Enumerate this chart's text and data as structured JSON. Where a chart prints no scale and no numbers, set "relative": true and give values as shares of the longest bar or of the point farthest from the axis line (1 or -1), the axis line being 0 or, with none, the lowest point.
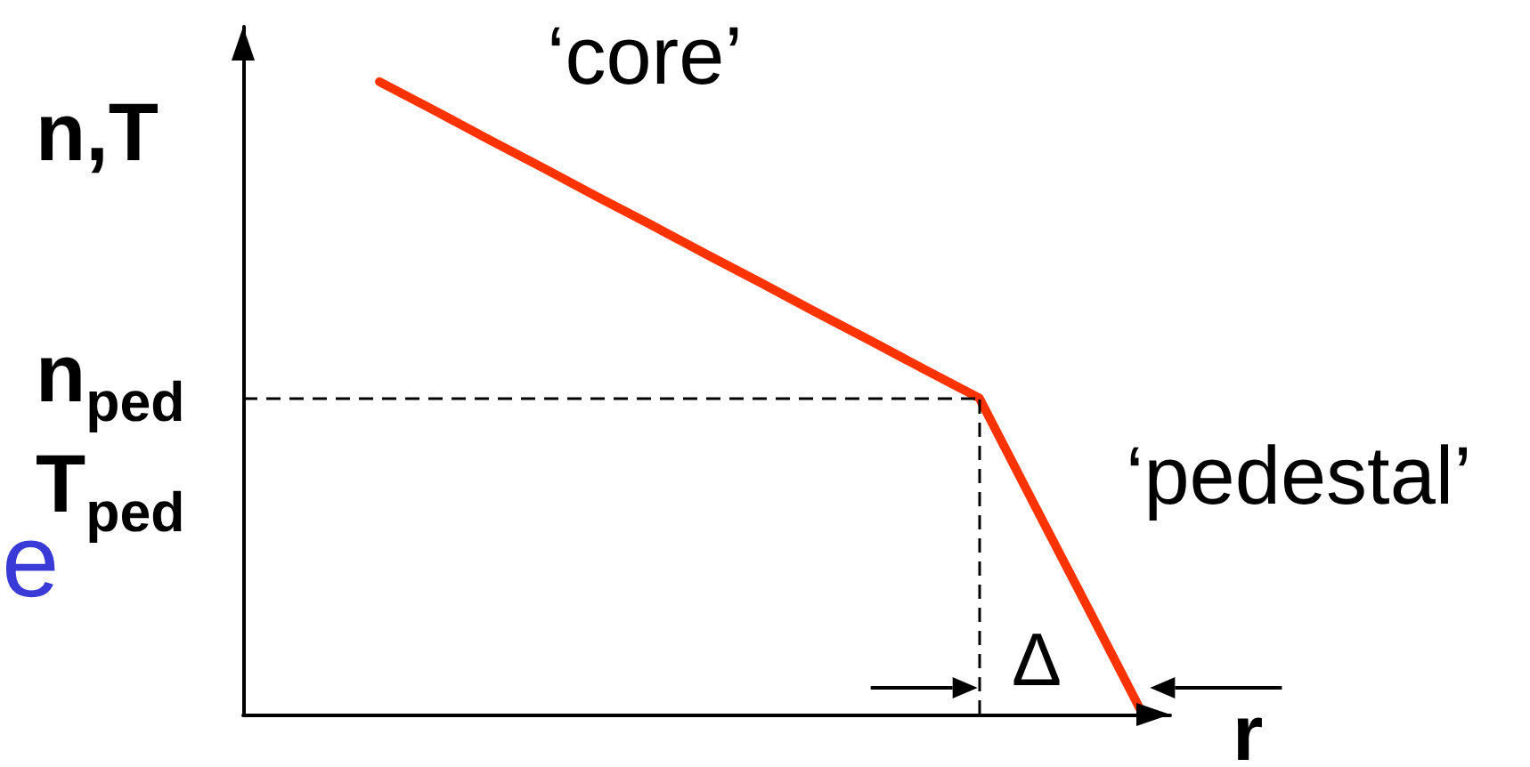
{
  "chart_data": {
    "type": "line",
    "relative": true,
    "ylabel": "n,T",
    "xlabel": "r",
    "categories": [
      null,
      null,
      null,
      null,
      null,
      null,
      null,
      null,
      null,
      null,
      null,
      null,
      null,
      null,
      null,
      null,
      null
    ],
    "series": [
      {
        "color": "#ff3300",
        "values": [
          null,
          null,
          1,
          0.955,
          0.909,
          0.864,
          0.818,
          0.773,
          0.727,
          0.682,
          0.636,
          0.591,
          0.545,
          0.5,
          0.333,
          0.167,
          0
        ]
      }
    ],
    "marker": "none",
    "ref_lines": [
      {
        "axis": "y",
        "value": 0.5,
        "label": "n$_{ped}$\nT$_{ped}$",
        "color": "#000000",
        "line_style": "dashed"
      }
    ],
    "annotations": [
      "‘core’",
      "‘pedestal’",
      "Δ",
      "e"
    ]
  }
}
